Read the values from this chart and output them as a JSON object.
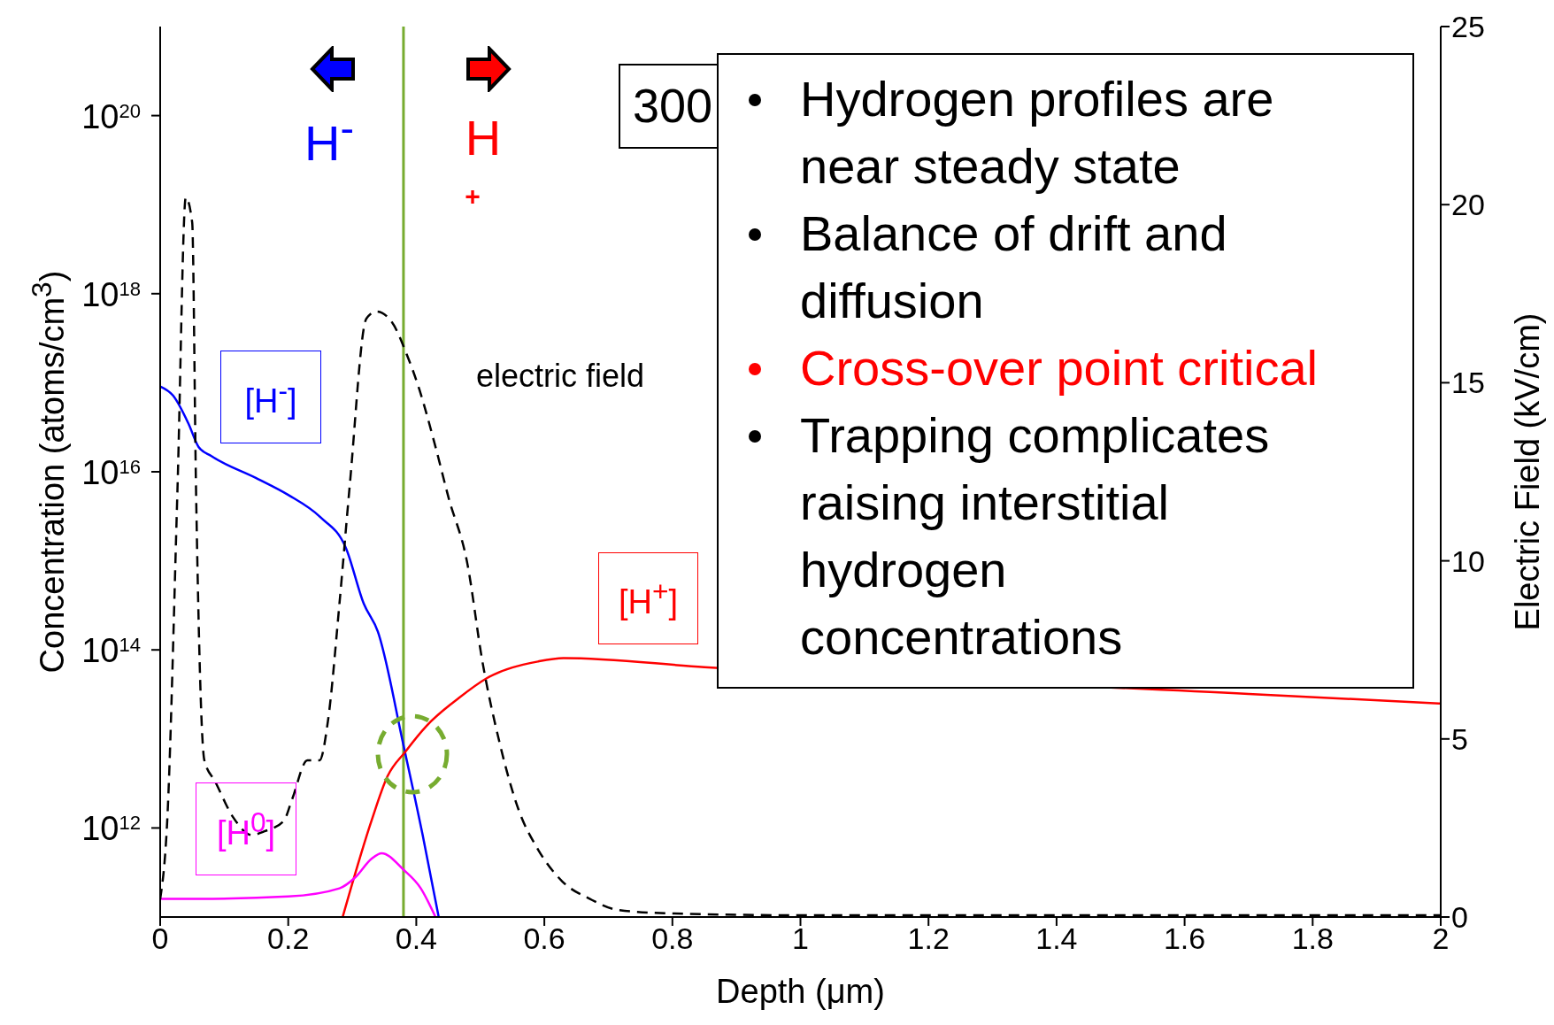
{
  "chart_data": {
    "type": "line",
    "xlabel": "Depth (μm)",
    "ylabel": "Concentration (atoms/cm$^{3}$)",
    "y2label": "Electric Field (kV/cm)",
    "xlim": [
      0,
      2
    ],
    "xticks": [
      0,
      0.2,
      0.4,
      0.6,
      0.8,
      1,
      1.2,
      1.4,
      1.6,
      1.8,
      2
    ],
    "ylim": [
      100000000000.0,
      1e+21
    ],
    "yticks": [
      {
        "value": 1000000000000.0,
        "label": "10$^{12}$"
      },
      {
        "value": 100000000000000.0,
        "label": "10$^{14}$"
      },
      {
        "value": 1e+16,
        "label": "10$^{16}$"
      },
      {
        "value": 1e+18,
        "label": "10$^{18}$"
      },
      {
        "value": 1e+20,
        "label": "10$^{20}$"
      }
    ],
    "log": "y",
    "y2lim": [
      0,
      25
    ],
    "y2ticks": [
      0,
      5,
      10,
      15,
      20,
      25
    ],
    "series": [
      {
        "name": "[H$^{-}$]",
        "color": "#0000ff",
        "x": [
          0,
          0.02,
          0.044,
          0.06,
          0.08,
          0.15,
          0.2,
          0.25,
          0.29,
          0.318,
          0.34,
          0.38,
          0.41,
          0.435
        ],
        "values": [
          9.1e+16,
          7.2e+16,
          3.5e+16,
          1.9e+16,
          1.5e+16,
          8500000000000000.0,
          5500000000000000.0,
          3100000000000000.0,
          1400000000000000.0,
          330000000000000.0,
          160000000000000.0,
          8500000000000.0,
          830000000000.0,
          100000000000.0
        ]
      },
      {
        "name": "[H$^{+}$]",
        "color": "#ff0000",
        "x": [
          0.285,
          0.33,
          0.355,
          0.383,
          0.416,
          0.467,
          0.51,
          0.59,
          0.63,
          0.85,
          1.7,
          2
        ],
        "values": [
          100000000000.0,
          1200000000000.0,
          3800000000000.0,
          7200000000000.0,
          14000000000000.0,
          29000000000000.0,
          48000000000000.0,
          74000000000000.0,
          81000000000000.0,
          64000000000000.0,
          32000000000000.0,
          25000000000000.0
        ]
      },
      {
        "name": "[H$^{0}$]",
        "color": "#ff00ff",
        "x": [
          0,
          0.06,
          0.2,
          0.28,
          0.305,
          0.33,
          0.346,
          0.38,
          0.407,
          0.43
        ],
        "values": [
          160000000000.0,
          160000000000.0,
          170000000000.0,
          210000000000.0,
          280000000000.0,
          450000000000.0,
          520000000000.0,
          340000000000.0,
          210000000000.0,
          100000000000.0
        ]
      },
      {
        "name": "electric field",
        "color": "#000000",
        "axis": "y2",
        "line_style": "dashed",
        "x": [
          0,
          0.011,
          0.027,
          0.04,
          0.05,
          0.056,
          0.069,
          0.086,
          0.114,
          0.143,
          0.162,
          0.193,
          0.206,
          0.23,
          0.249,
          0.262,
          0.28,
          0.296,
          0.322,
          0.338,
          0.362,
          0.385,
          0.405,
          0.43,
          0.45,
          0.48,
          0.503,
          0.53,
          0.56,
          0.59,
          0.628,
          0.672,
          0.715,
          0.8,
          1,
          2
        ],
        "values": [
          0.5,
          2.7,
          12,
          20.2,
          19.5,
          12,
          4.4,
          3.8,
          2.8,
          2.3,
          2.4,
          2.7,
          3.3,
          4.4,
          4.4,
          5.5,
          8.8,
          12.1,
          16.8,
          17,
          16.7,
          15.8,
          14.8,
          13.2,
          11.8,
          9.9,
          7.2,
          4.9,
          3,
          1.9,
          1,
          0.5,
          0.2,
          0.1,
          0.05,
          0.05
        ]
      }
    ],
    "ref_lines": [
      {
        "axis": "x",
        "value": 0.38,
        "color": "#77ac30"
      }
    ],
    "annotations": [
      "H$^{-}$",
      "H",
      "+",
      "300",
      "Hydrogen profiles are near steady state",
      "Balance of drift and diffusion",
      "Cross-over point critical",
      "Trapping complicates raising interstitial hydrogen concentrations"
    ]
  }
}
